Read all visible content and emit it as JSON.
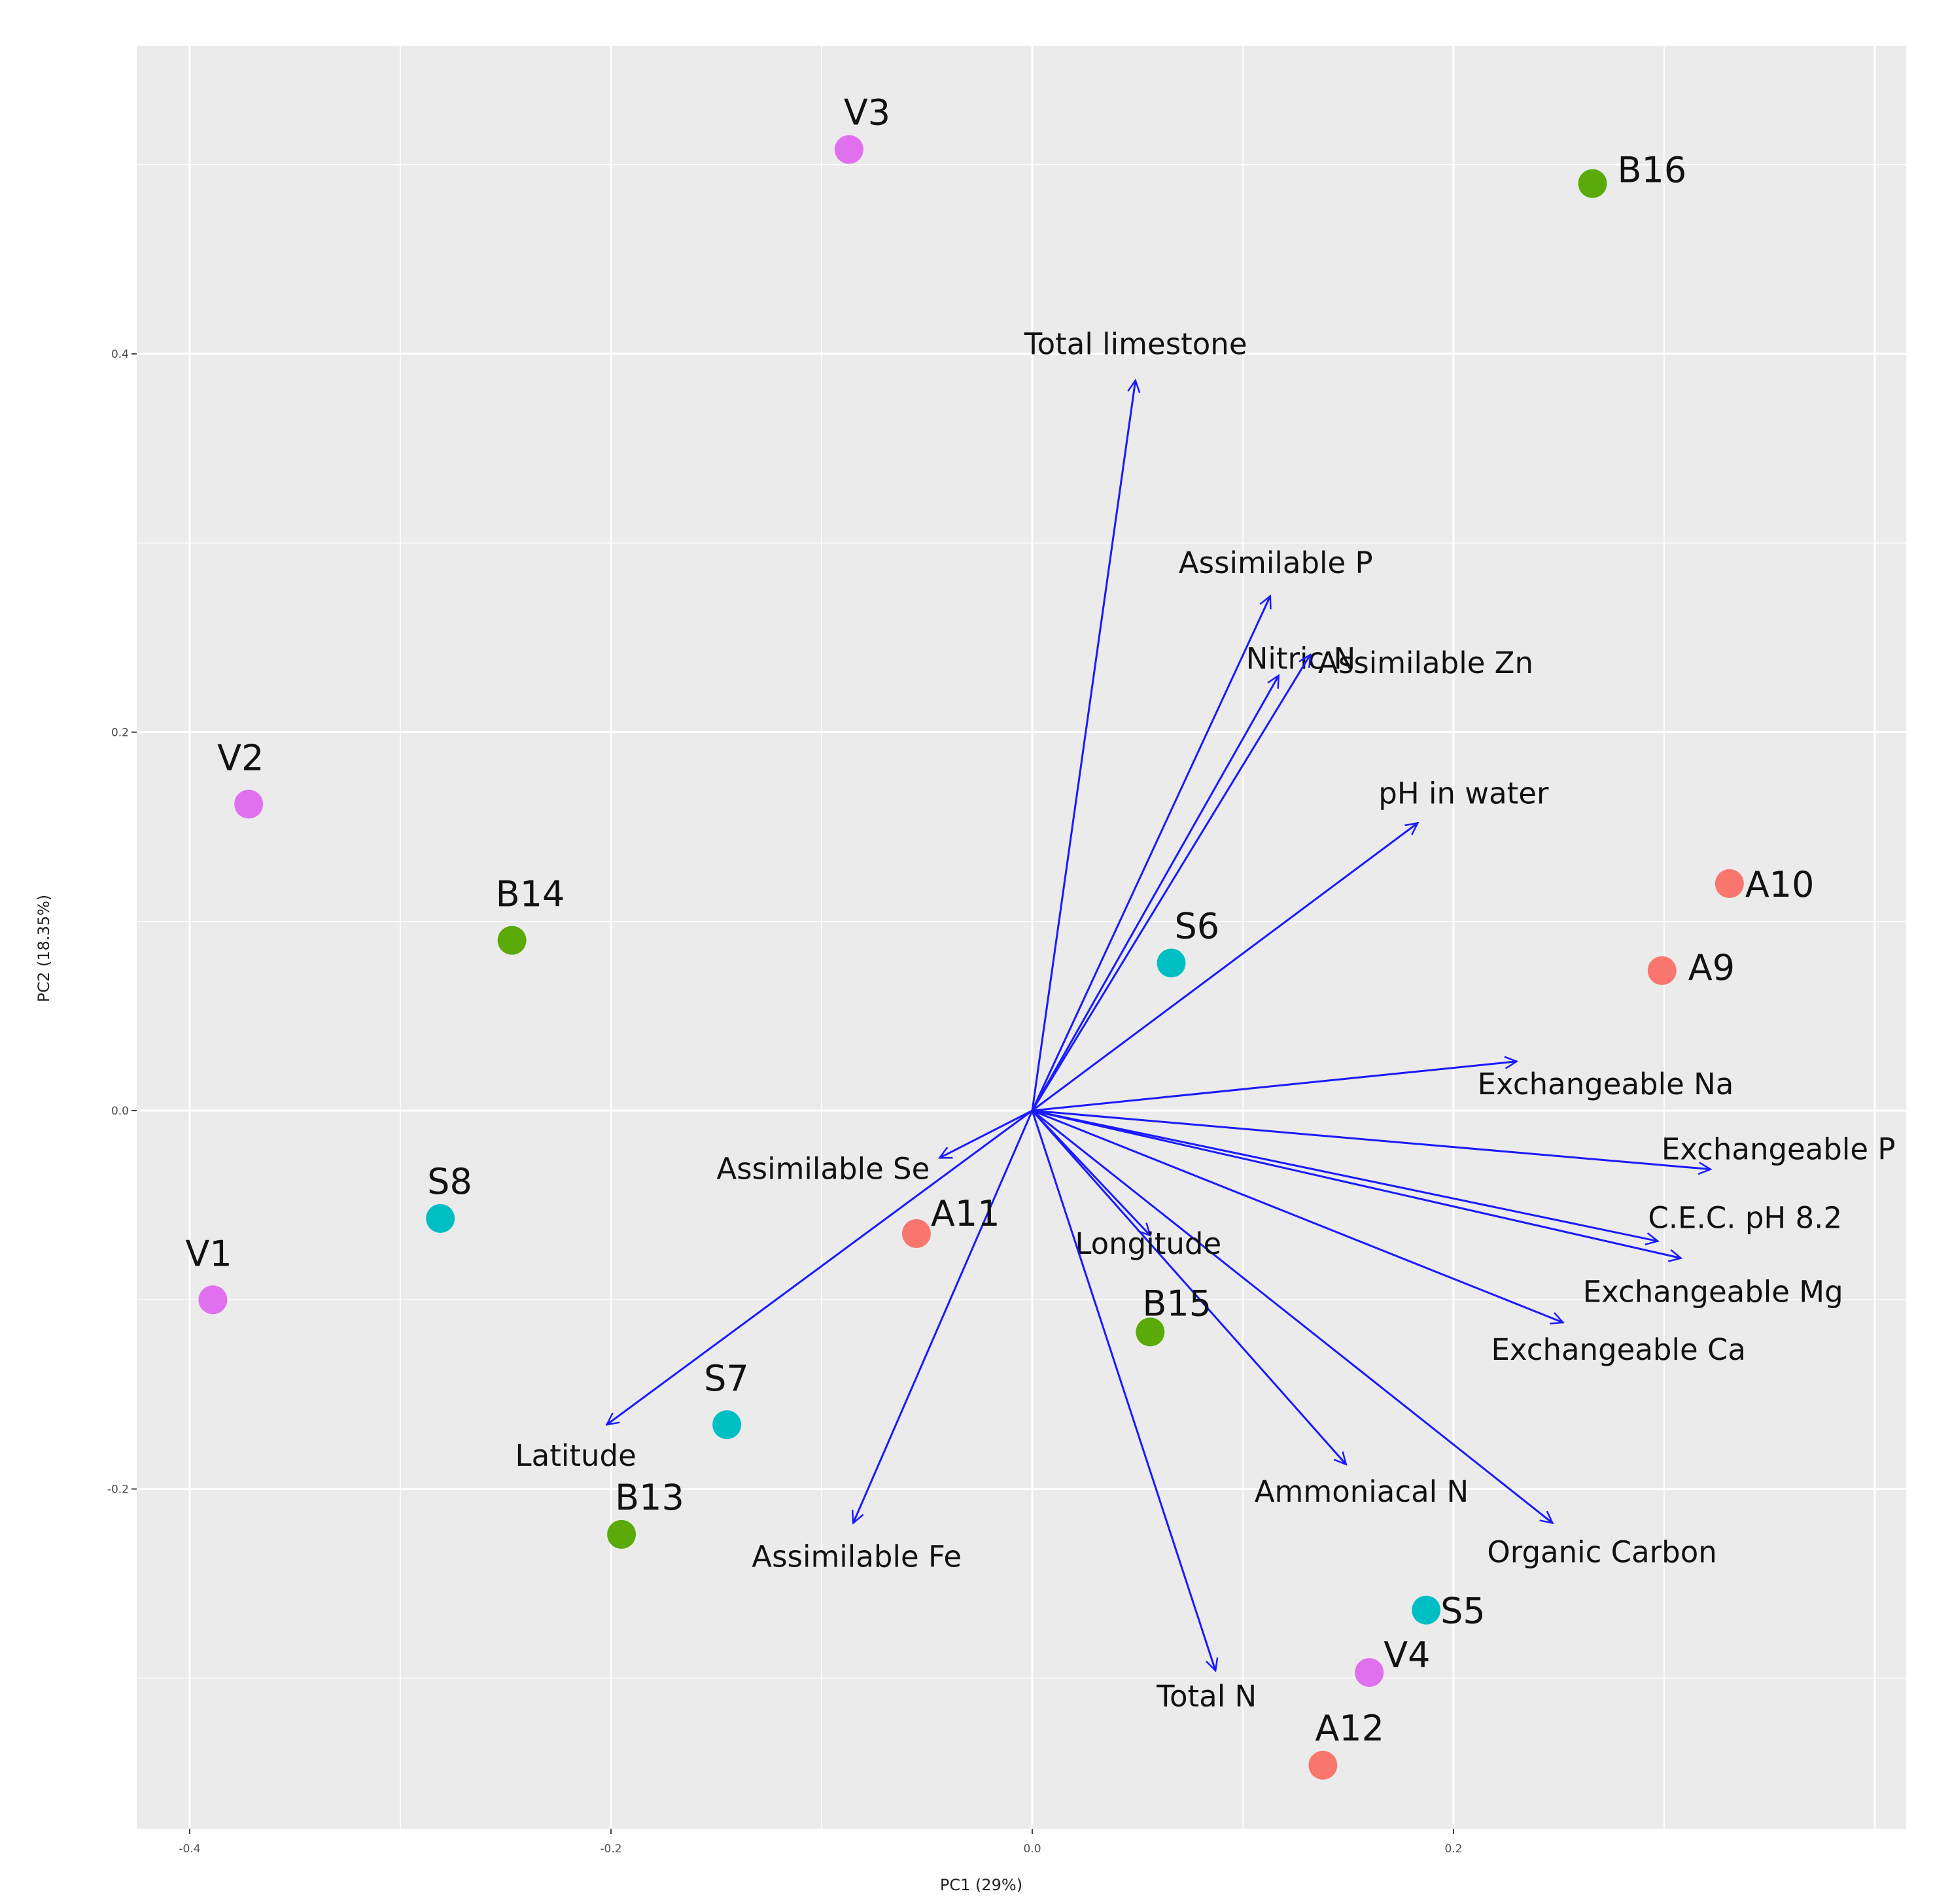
{
  "chart_data": {
    "type": "biplot",
    "xlabel": "PC1 (29%)",
    "ylabel": "PC2 (18.35%)",
    "xlim": [
      -0.4,
      0.4
    ],
    "ylim": [
      -0.38,
      0.56
    ],
    "xticks": [
      -0.4,
      -0.2,
      0.0,
      0.2
    ],
    "xtick_labels": [
      "-0.4",
      "-0.2",
      "0.0",
      "0.2"
    ],
    "yticks": [
      -0.2,
      0.0,
      0.2,
      0.4
    ],
    "ytick_labels": [
      "-0.2",
      "0.0",
      "0.2",
      "0.4"
    ],
    "grid": true,
    "groups": {
      "A": "#f8766d",
      "B": "#5aaa0a",
      "S": "#00bfc4",
      "V": "#e070ee"
    },
    "vector_color": "#1a1aff",
    "points": [
      {
        "label": "V3",
        "group": "V",
        "x": -0.087,
        "y": 0.508
      },
      {
        "label": "B16",
        "group": "B",
        "x": 0.266,
        "y": 0.49
      },
      {
        "label": "V2",
        "group": "V",
        "x": -0.372,
        "y": 0.162
      },
      {
        "label": "B14",
        "group": "B",
        "x": -0.247,
        "y": 0.09
      },
      {
        "label": "A10",
        "group": "A",
        "x": 0.331,
        "y": 0.12
      },
      {
        "label": "A9",
        "group": "A",
        "x": 0.299,
        "y": 0.074
      },
      {
        "label": "S6",
        "group": "S",
        "x": 0.066,
        "y": 0.078
      },
      {
        "label": "S8",
        "group": "S",
        "x": -0.281,
        "y": -0.057
      },
      {
        "label": "V1",
        "group": "V",
        "x": -0.389,
        "y": -0.1
      },
      {
        "label": "A11",
        "group": "A",
        "x": -0.055,
        "y": -0.065
      },
      {
        "label": "B15",
        "group": "B",
        "x": 0.056,
        "y": -0.117
      },
      {
        "label": "S7",
        "group": "S",
        "x": -0.145,
        "y": -0.166
      },
      {
        "label": "B13",
        "group": "B",
        "x": -0.195,
        "y": -0.224
      },
      {
        "label": "S5",
        "group": "S",
        "x": 0.187,
        "y": -0.264
      },
      {
        "label": "V4",
        "group": "V",
        "x": 0.16,
        "y": -0.297
      },
      {
        "label": "A12",
        "group": "A",
        "x": 0.138,
        "y": -0.346
      }
    ],
    "vectors": [
      {
        "label": "Total limestone",
        "x": 0.049,
        "y": 0.386
      },
      {
        "label": "Assimilable P",
        "x": 0.113,
        "y": 0.272
      },
      {
        "label": "Nitric N",
        "x": 0.117,
        "y": 0.23
      },
      {
        "label": "Assimilable Zn",
        "x": 0.132,
        "y": 0.241
      },
      {
        "label": "pH in water",
        "x": 0.183,
        "y": 0.152
      },
      {
        "label": "Exchangeable Na",
        "x": 0.23,
        "y": 0.026
      },
      {
        "label": "Exchangeable P",
        "x": 0.322,
        "y": -0.031
      },
      {
        "label": "C.E.C. pH 8.2",
        "x": 0.297,
        "y": -0.069
      },
      {
        "label": "Exchangeable Mg",
        "x": 0.308,
        "y": -0.078
      },
      {
        "label": "Exchangeable Ca",
        "x": 0.252,
        "y": -0.112
      },
      {
        "label": "Organic Carbon",
        "x": 0.247,
        "y": -0.218
      },
      {
        "label": "Ammoniacal N",
        "x": 0.149,
        "y": -0.187
      },
      {
        "label": "Longitude",
        "x": 0.056,
        "y": -0.066
      },
      {
        "label": "Total N",
        "x": 0.087,
        "y": -0.296
      },
      {
        "label": "Assimilable Fe",
        "x": -0.085,
        "y": -0.218
      },
      {
        "label": "Latitude",
        "x": -0.202,
        "y": -0.166
      },
      {
        "label": "Assimilable Se",
        "x": -0.044,
        "y": -0.025
      }
    ]
  }
}
